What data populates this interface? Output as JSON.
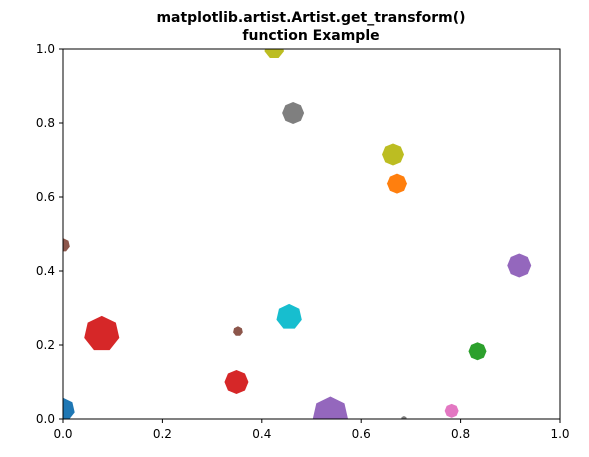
{
  "chart_data": {
    "type": "scatter",
    "title_lines": [
      "matplotlib.artist.Artist.get_transform()",
      "function Example"
    ],
    "xlabel": "",
    "ylabel": "",
    "xlim": [
      0.0,
      1.0
    ],
    "ylim": [
      0.0,
      1.0
    ],
    "grid": false,
    "x_ticks": [
      "0.0",
      "0.2",
      "0.4",
      "0.6",
      "0.8",
      "1.0"
    ],
    "y_ticks": [
      "0.0",
      "0.2",
      "0.4",
      "0.6",
      "0.8",
      "1.0"
    ],
    "points": [
      {
        "x": 0.0,
        "y": 0.025,
        "color": "#1f77b4",
        "size": 12,
        "sides": 7
      },
      {
        "x": 0.425,
        "y": 1.0,
        "color": "#bcbd22",
        "size": 10,
        "sides": 7
      },
      {
        "x": 0.463,
        "y": 0.827,
        "color": "#7f7f7f",
        "size": 11,
        "sides": 8
      },
      {
        "x": 0.664,
        "y": 0.715,
        "color": "#bcbd22",
        "size": 11,
        "sides": 8
      },
      {
        "x": 0.672,
        "y": 0.636,
        "color": "#ff7f0e",
        "size": 10,
        "sides": 8
      },
      {
        "x": 0.0,
        "y": 0.47,
        "color": "#8c564b",
        "size": 7,
        "sides": 7
      },
      {
        "x": 0.918,
        "y": 0.415,
        "color": "#9467bd",
        "size": 12,
        "sides": 8
      },
      {
        "x": 0.078,
        "y": 0.23,
        "color": "#d62728",
        "size": 18,
        "sides": 7
      },
      {
        "x": 0.352,
        "y": 0.237,
        "color": "#8c564b",
        "size": 5,
        "sides": 7
      },
      {
        "x": 0.455,
        "y": 0.276,
        "color": "#17becf",
        "size": 13,
        "sides": 7
      },
      {
        "x": 0.834,
        "y": 0.183,
        "color": "#2ca02c",
        "size": 9,
        "sides": 8
      },
      {
        "x": 0.349,
        "y": 0.1,
        "color": "#d62728",
        "size": 12,
        "sides": 8
      },
      {
        "x": 0.538,
        "y": 0.012,
        "color": "#9467bd",
        "size": 18,
        "sides": 7
      },
      {
        "x": 0.782,
        "y": 0.022,
        "color": "#e377c2",
        "size": 7,
        "sides": 8
      },
      {
        "x": 0.686,
        "y": 0.0,
        "color": "#7f7f7f",
        "size": 3,
        "sides": 7
      }
    ]
  }
}
